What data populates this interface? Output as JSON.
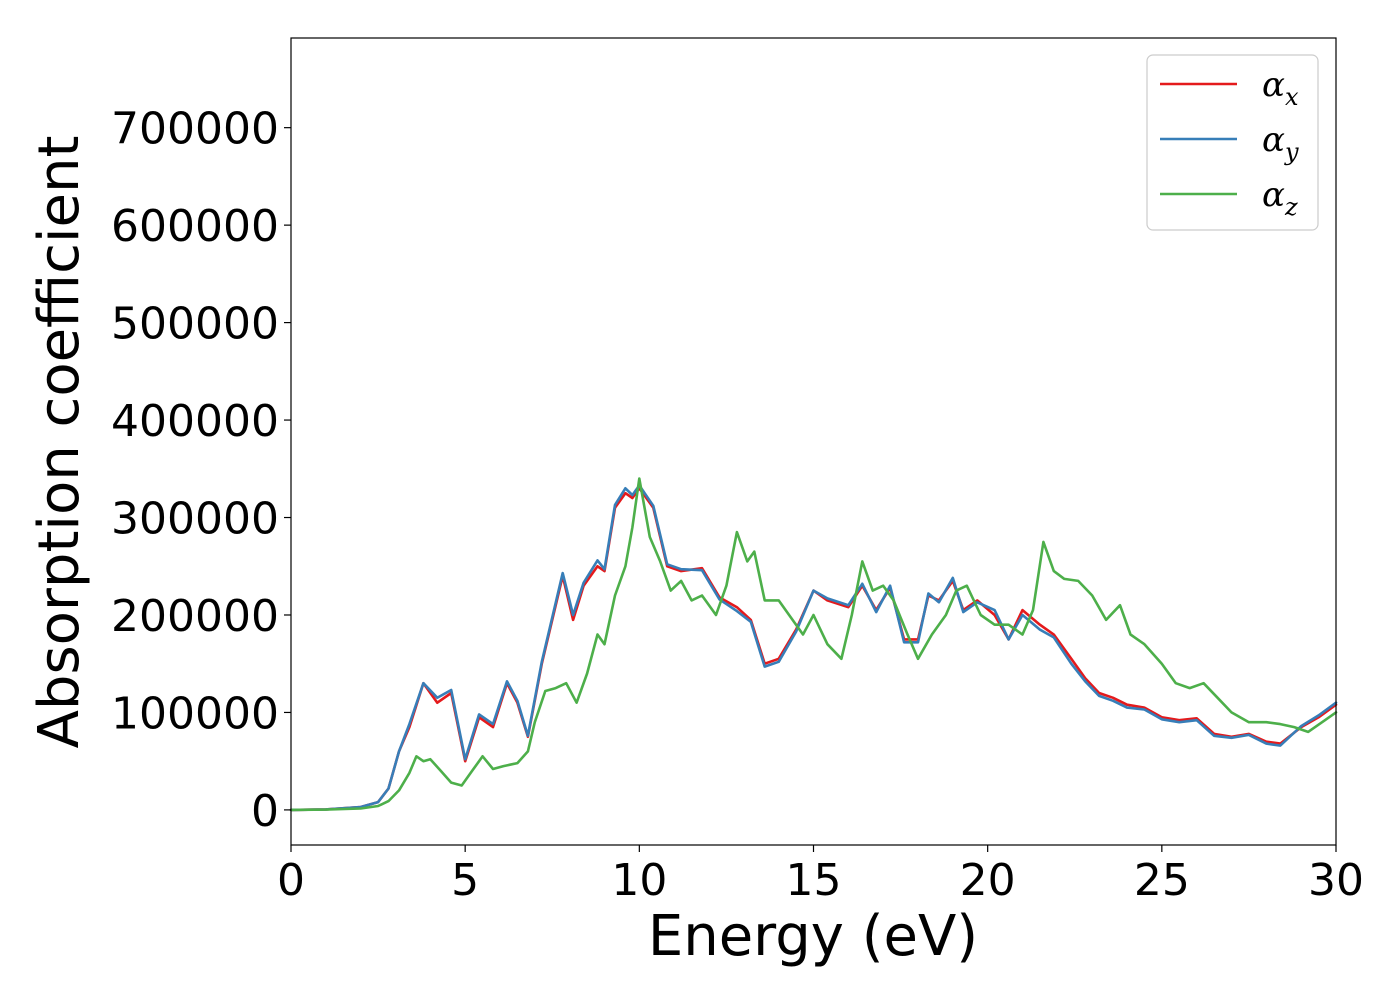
{
  "chart_data": {
    "type": "line",
    "title": "",
    "xlabel": "Energy (eV)",
    "ylabel": "Absorption coefficient",
    "xlim": [
      0,
      30
    ],
    "ylim": [
      -36000,
      792000
    ],
    "xticks": [
      0,
      5,
      10,
      15,
      20,
      25,
      30
    ],
    "yticks": [
      0,
      100000,
      200000,
      300000,
      400000,
      500000,
      600000,
      700000
    ],
    "grid": false,
    "legend_position": "top-right",
    "series": [
      {
        "name": "α_x",
        "legend_base": "α",
        "legend_sub": "x",
        "color": "#e41a1c",
        "x": [
          0,
          1,
          2,
          2.5,
          2.8,
          3.1,
          3.4,
          3.8,
          4.2,
          4.6,
          5.0,
          5.4,
          5.8,
          6.2,
          6.5,
          6.8,
          7.2,
          7.8,
          8.1,
          8.4,
          8.8,
          9.0,
          9.3,
          9.6,
          9.8,
          10.0,
          10.4,
          10.8,
          11.2,
          11.8,
          12.3,
          12.8,
          13.2,
          13.6,
          14.0,
          14.5,
          15.0,
          15.4,
          16.0,
          16.4,
          16.8,
          17.2,
          17.6,
          18.0,
          18.3,
          18.6,
          19.0,
          19.3,
          19.7,
          20.2,
          20.6,
          21.0,
          21.5,
          21.9,
          22.4,
          22.8,
          23.2,
          23.6,
          24.0,
          24.5,
          25.0,
          25.5,
          26.0,
          26.5,
          27.0,
          27.5,
          28.0,
          28.4,
          29.0,
          29.5,
          30.0
        ],
        "y": [
          0,
          500,
          3000,
          8000,
          22000,
          60000,
          85000,
          130000,
          110000,
          120000,
          50000,
          95000,
          85000,
          130000,
          110000,
          75000,
          150000,
          240000,
          195000,
          230000,
          250000,
          245000,
          310000,
          325000,
          320000,
          330000,
          310000,
          250000,
          245000,
          248000,
          218000,
          208000,
          195000,
          150000,
          155000,
          185000,
          225000,
          215000,
          208000,
          230000,
          205000,
          228000,
          175000,
          175000,
          220000,
          215000,
          235000,
          205000,
          215000,
          200000,
          175000,
          205000,
          190000,
          180000,
          155000,
          135000,
          120000,
          115000,
          108000,
          105000,
          95000,
          92000,
          94000,
          78000,
          75000,
          78000,
          70000,
          68000,
          85000,
          95000,
          108000
        ]
      },
      {
        "name": "α_y",
        "legend_base": "α",
        "legend_sub": "y",
        "color": "#377eb8",
        "x": [
          0,
          1,
          2,
          2.5,
          2.8,
          3.1,
          3.4,
          3.8,
          4.2,
          4.6,
          5.0,
          5.4,
          5.8,
          6.2,
          6.5,
          6.8,
          7.2,
          7.8,
          8.1,
          8.4,
          8.8,
          9.0,
          9.3,
          9.6,
          9.8,
          10.0,
          10.4,
          10.8,
          11.2,
          11.8,
          12.3,
          12.8,
          13.2,
          13.6,
          14.0,
          14.5,
          15.0,
          15.4,
          16.0,
          16.4,
          16.8,
          17.2,
          17.6,
          18.0,
          18.3,
          18.6,
          19.0,
          19.3,
          19.7,
          20.2,
          20.6,
          21.0,
          21.5,
          21.9,
          22.4,
          22.8,
          23.2,
          23.6,
          24.0,
          24.5,
          25.0,
          25.5,
          26.0,
          26.5,
          27.0,
          27.5,
          28.0,
          28.4,
          29.0,
          29.5,
          30.0
        ],
        "y": [
          0,
          500,
          3000,
          8000,
          22000,
          60000,
          88000,
          130000,
          115000,
          123000,
          52000,
          98000,
          88000,
          132000,
          112000,
          76000,
          152000,
          243000,
          200000,
          233000,
          256000,
          247000,
          313000,
          330000,
          323000,
          333000,
          312000,
          252000,
          247000,
          246000,
          216000,
          204000,
          193000,
          147000,
          152000,
          183000,
          225000,
          217000,
          210000,
          232000,
          203000,
          230000,
          172000,
          172000,
          222000,
          213000,
          238000,
          203000,
          213000,
          205000,
          175000,
          200000,
          185000,
          177000,
          150000,
          132000,
          117000,
          112000,
          105000,
          103000,
          93000,
          90000,
          92000,
          76000,
          74000,
          77000,
          68000,
          66000,
          86000,
          97000,
          110000
        ]
      },
      {
        "name": "α_z",
        "legend_base": "α",
        "legend_sub": "z",
        "color": "#4daf4a",
        "x": [
          0,
          1,
          2,
          2.5,
          2.8,
          3.1,
          3.4,
          3.6,
          3.8,
          4.0,
          4.3,
          4.6,
          4.9,
          5.2,
          5.5,
          5.8,
          6.1,
          6.5,
          6.8,
          7.0,
          7.3,
          7.6,
          7.9,
          8.2,
          8.5,
          8.8,
          9.0,
          9.3,
          9.6,
          9.8,
          10.0,
          10.3,
          10.6,
          10.9,
          11.2,
          11.5,
          11.8,
          12.2,
          12.5,
          12.8,
          13.1,
          13.3,
          13.6,
          14.0,
          14.3,
          14.7,
          15.0,
          15.4,
          15.8,
          16.1,
          16.4,
          16.7,
          17.0,
          17.3,
          17.7,
          18.0,
          18.4,
          18.8,
          19.1,
          19.4,
          19.8,
          20.2,
          20.6,
          21.0,
          21.3,
          21.6,
          21.9,
          22.2,
          22.6,
          23.0,
          23.4,
          23.8,
          24.1,
          24.5,
          25.0,
          25.4,
          25.8,
          26.2,
          26.6,
          27.0,
          27.5,
          28.0,
          28.4,
          28.8,
          29.2,
          29.6,
          30.0
        ],
        "y": [
          0,
          300,
          1500,
          4000,
          9000,
          20000,
          38000,
          55000,
          50000,
          52000,
          40000,
          28000,
          25000,
          40000,
          55000,
          42000,
          45000,
          48000,
          60000,
          90000,
          122000,
          125000,
          130000,
          110000,
          140000,
          180000,
          170000,
          220000,
          250000,
          290000,
          340000,
          280000,
          255000,
          225000,
          235000,
          215000,
          220000,
          200000,
          230000,
          285000,
          255000,
          265000,
          215000,
          215000,
          200000,
          180000,
          200000,
          170000,
          155000,
          200000,
          255000,
          225000,
          230000,
          215000,
          180000,
          155000,
          180000,
          200000,
          225000,
          230000,
          200000,
          190000,
          190000,
          180000,
          205000,
          275000,
          245000,
          237000,
          235000,
          220000,
          195000,
          210000,
          180000,
          170000,
          150000,
          130000,
          125000,
          130000,
          115000,
          100000,
          90000,
          90000,
          88000,
          85000,
          80000,
          90000,
          100000
        ]
      }
    ]
  }
}
